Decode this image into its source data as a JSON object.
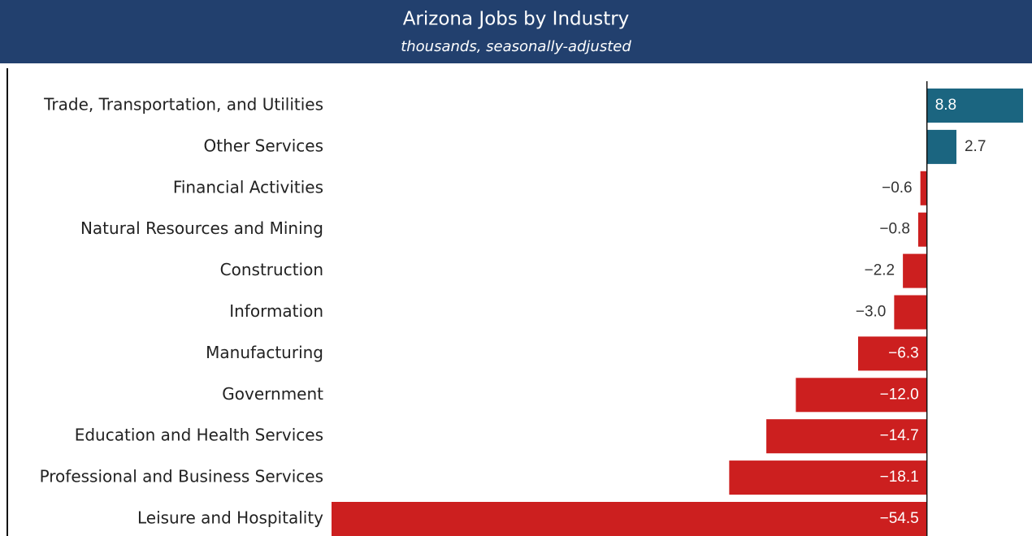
{
  "chart_data": {
    "type": "bar",
    "orientation": "horizontal",
    "title": "Arizona Jobs by Industry",
    "subtitle": "thousands, seasonally-adjusted",
    "categories": [
      "Trade, Transportation, and Utilities",
      "Other Services",
      "Financial Activities",
      "Natural Resources and Mining",
      "Construction",
      "Information",
      "Manufacturing",
      "Government",
      "Education and Health Services",
      "Professional and Business Services",
      "Leisure and Hospitality"
    ],
    "values": [
      8.8,
      2.7,
      -0.6,
      -0.8,
      -2.2,
      -3.0,
      -6.3,
      -12.0,
      -14.7,
      -18.1,
      -54.5
    ],
    "value_labels": [
      "8.8",
      "2.7",
      "−0.6",
      "−0.8",
      "−2.2",
      "−3.0",
      "−6.3",
      "−12.0",
      "−14.7",
      "−18.1",
      "−54.5"
    ],
    "color_positive": "#1b6580",
    "color_negative": "#cc1f1f",
    "xlim": [
      -54.5,
      8.8
    ]
  }
}
